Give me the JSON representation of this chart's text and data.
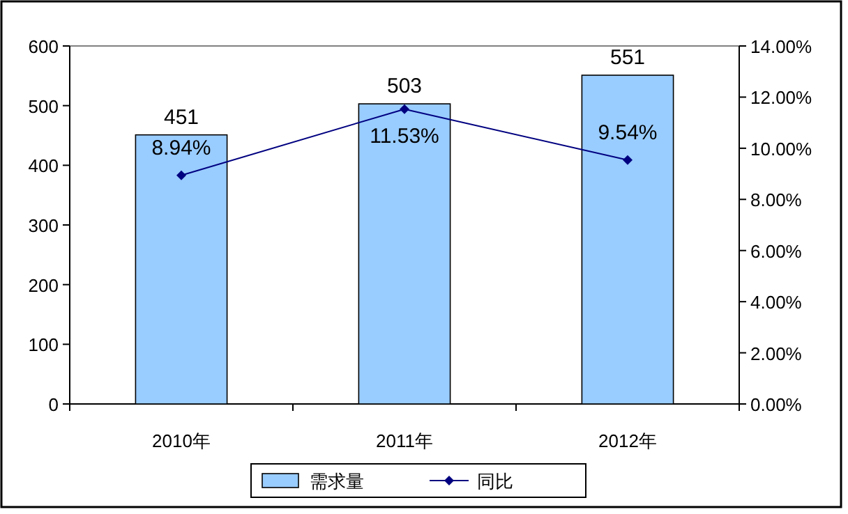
{
  "chart_data": {
    "type": "bar",
    "categories": [
      "2010年",
      "2011年",
      "2012年"
    ],
    "series": [
      {
        "name": "需求量",
        "color": "#99ccff",
        "values": [
          451,
          503,
          551
        ],
        "value_labels": [
          "451",
          "503",
          "551"
        ]
      },
      {
        "name": "同比",
        "type": "line",
        "axis": "y2",
        "color": "#000080",
        "marker": "diamond",
        "values": [
          8.94,
          11.53,
          9.54
        ],
        "value_labels": [
          "8.94%",
          "11.53%",
          "9.54%"
        ]
      }
    ],
    "ylim": [
      0,
      600
    ],
    "yticks": [
      0,
      100,
      200,
      300,
      400,
      500,
      600
    ],
    "y2lim": [
      0,
      14
    ],
    "y2ticks": [
      {
        "value": 0,
        "label": "0.00%"
      },
      {
        "value": 2,
        "label": "2.00%"
      },
      {
        "value": 4,
        "label": "4.00%"
      },
      {
        "value": 6,
        "label": "6.00%"
      },
      {
        "value": 8,
        "label": "8.00%"
      },
      {
        "value": 10,
        "label": "10.00%"
      },
      {
        "value": 12,
        "label": "12.00%"
      },
      {
        "value": 14,
        "label": "14.00%"
      }
    ],
    "legend": "bottom"
  }
}
